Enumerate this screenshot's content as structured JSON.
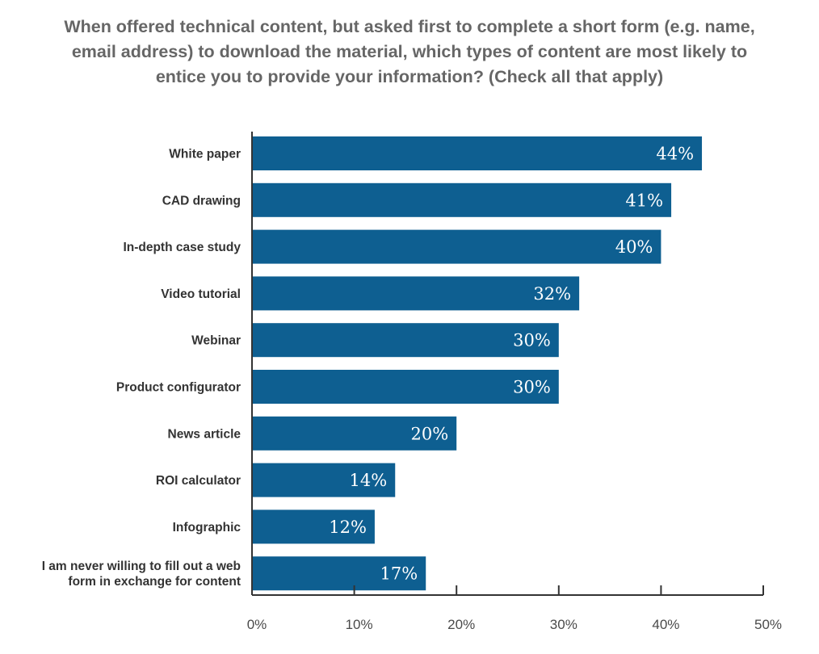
{
  "title_lines": [
    "When offered technical content, but asked first to complete a short form (e.g. name,",
    "email address) to download the material, which types of content are most likely to",
    "entice you to provide your information? (Check all that apply)"
  ],
  "colors": {
    "bar": "#0e5f91",
    "axis": "#333333",
    "value_text": "#ffffff"
  },
  "chart_data": {
    "type": "bar",
    "orientation": "horizontal",
    "title": "When offered technical content, but asked first to complete a short form (e.g. name, email address) to download the material, which types of content are most likely to entice you to provide your information? (Check all that apply)",
    "categories": [
      [
        "White paper"
      ],
      [
        "CAD drawing"
      ],
      [
        "In-depth case study"
      ],
      [
        "Video tutorial"
      ],
      [
        "Webinar"
      ],
      [
        "Product configurator"
      ],
      [
        "News article"
      ],
      [
        "ROI calculator"
      ],
      [
        "Infographic"
      ],
      [
        "I am never willing to fill out a web",
        "form in exchange for content"
      ]
    ],
    "values": [
      44,
      41,
      40,
      32,
      30,
      30,
      20,
      14,
      12,
      17
    ],
    "value_labels": [
      "44%",
      "41%",
      "40%",
      "32%",
      "30%",
      "30%",
      "20%",
      "14%",
      "12%",
      "17%"
    ],
    "xlim": [
      0,
      50
    ],
    "xticks": [
      0,
      10,
      20,
      30,
      40,
      50
    ],
    "xtick_labels": [
      "0%",
      "10%",
      "20%",
      "30%",
      "40%",
      "50%"
    ],
    "xlabel": "",
    "ylabel": "",
    "grid": false,
    "legend": "none"
  }
}
